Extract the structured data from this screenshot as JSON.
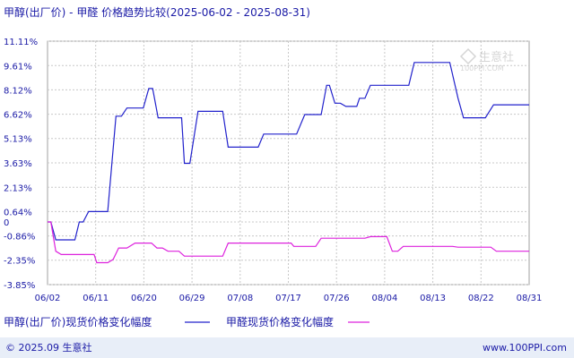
{
  "chart_data": {
    "type": "line",
    "title": "甲醇(出厂价) - 甲醛 价格趋势比较(2025-06-02 - 2025-08-31)",
    "y_ticks": [
      "11.11%",
      "9.61%",
      "8.12%",
      "6.62%",
      "5.13%",
      "3.63%",
      "2.13%",
      "0.64%",
      "0",
      "-0.86%",
      "-2.35%",
      "-3.85%"
    ],
    "y_tick_values": [
      11.11,
      9.61,
      8.12,
      6.62,
      5.13,
      3.63,
      2.13,
      0.64,
      0,
      -0.86,
      -2.35,
      -3.85
    ],
    "ylim": [
      -3.85,
      11.11
    ],
    "x_ticks": [
      "06/02",
      "06/11",
      "06/20",
      "06/29",
      "07/08",
      "07/17",
      "07/26",
      "08/04",
      "08/13",
      "08/22",
      "08/31"
    ],
    "grid": true,
    "legend_position": "bottom-left",
    "series": [
      {
        "name": "甲醇(出厂价)现货价格变化幅度",
        "color": "#2222cc",
        "points": [
          [
            0,
            0
          ],
          [
            0.6,
            0
          ],
          [
            1.5,
            -1.1
          ],
          [
            5,
            -1.1
          ],
          [
            5.8,
            0
          ],
          [
            6.5,
            0
          ],
          [
            7.5,
            0.64
          ],
          [
            11,
            0.64
          ],
          [
            12.5,
            6.5
          ],
          [
            13.5,
            6.5
          ],
          [
            14.5,
            7.0
          ],
          [
            17.5,
            7.0
          ],
          [
            18.5,
            8.2
          ],
          [
            19.2,
            8.2
          ],
          [
            20.2,
            6.4
          ],
          [
            24.5,
            6.4
          ],
          [
            25,
            3.6
          ],
          [
            26,
            3.6
          ],
          [
            27.5,
            6.8
          ],
          [
            32,
            6.8
          ],
          [
            33,
            4.6
          ],
          [
            38.5,
            4.6
          ],
          [
            39.5,
            5.4
          ],
          [
            45.5,
            5.4
          ],
          [
            47,
            6.6
          ],
          [
            50,
            6.6
          ],
          [
            51,
            8.4
          ],
          [
            51.5,
            8.4
          ],
          [
            52.5,
            7.3
          ],
          [
            53.5,
            7.3
          ],
          [
            54.5,
            7.1
          ],
          [
            56.5,
            7.1
          ],
          [
            57,
            7.6
          ],
          [
            58,
            7.6
          ],
          [
            59,
            8.4
          ],
          [
            66,
            8.4
          ],
          [
            67,
            9.8
          ],
          [
            73.5,
            9.8
          ],
          [
            75,
            7.6
          ],
          [
            76,
            6.4
          ],
          [
            80,
            6.4
          ],
          [
            81.5,
            7.2
          ],
          [
            88,
            7.2
          ]
        ]
      },
      {
        "name": "甲醛现货价格变化幅度",
        "color": "#dd22dd",
        "points": [
          [
            0,
            0
          ],
          [
            0.6,
            0
          ],
          [
            1.5,
            -1.8
          ],
          [
            2.5,
            -2.0
          ],
          [
            8.5,
            -2.0
          ],
          [
            9,
            -2.5
          ],
          [
            11,
            -2.5
          ],
          [
            12,
            -2.3
          ],
          [
            13,
            -1.6
          ],
          [
            14.5,
            -1.6
          ],
          [
            16,
            -1.3
          ],
          [
            19,
            -1.3
          ],
          [
            20,
            -1.6
          ],
          [
            21,
            -1.6
          ],
          [
            22,
            -1.8
          ],
          [
            24,
            -1.8
          ],
          [
            25,
            -2.1
          ],
          [
            32,
            -2.1
          ],
          [
            33,
            -1.3
          ],
          [
            44.5,
            -1.3
          ],
          [
            45,
            -1.5
          ],
          [
            49,
            -1.5
          ],
          [
            50,
            -1.0
          ],
          [
            58,
            -1.0
          ],
          [
            59,
            -0.9
          ],
          [
            62,
            -0.9
          ],
          [
            63,
            -1.8
          ],
          [
            64,
            -1.8
          ],
          [
            65,
            -1.5
          ],
          [
            74,
            -1.5
          ],
          [
            75,
            -1.55
          ],
          [
            81,
            -1.55
          ],
          [
            82,
            -1.8
          ],
          [
            88,
            -1.8
          ]
        ]
      }
    ]
  },
  "watermark": {
    "brand": "生意社",
    "url": "100PPI.COM"
  },
  "legend": {
    "series1_label": "甲醇(出厂价)现货价格变化幅度",
    "series2_label": "甲醛现货价格变化幅度"
  },
  "footer": {
    "copyright": "© 2025.09 生意社",
    "website": "www.100PPI.com"
  }
}
